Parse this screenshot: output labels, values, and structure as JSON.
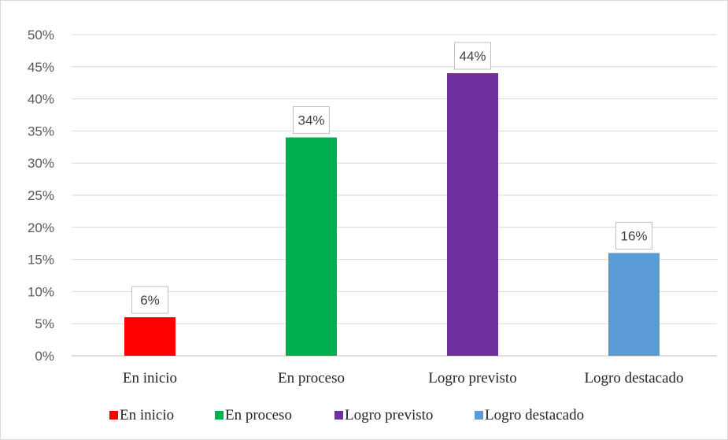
{
  "chart_data": {
    "type": "bar",
    "categories": [
      "En inicio",
      "En proceso",
      "Logro previsto",
      "Logro destacado"
    ],
    "values": [
      6,
      34,
      44,
      16
    ],
    "value_labels": [
      "6%",
      "34%",
      "44%",
      "16%"
    ],
    "colors": [
      "#ff0000",
      "#00b050",
      "#7030a0",
      "#5b9bd5"
    ],
    "ylim": [
      0,
      50
    ],
    "yticks": [
      0,
      5,
      10,
      15,
      20,
      25,
      30,
      35,
      40,
      45,
      50
    ],
    "ytick_labels": [
      "0%",
      "5%",
      "10%",
      "15%",
      "20%",
      "25%",
      "30%",
      "35%",
      "40%",
      "45%",
      "50%"
    ],
    "grid": true,
    "legend_position": "bottom",
    "legend": [
      "En inicio",
      "En proceso",
      "Logro previsto",
      "Logro destacado"
    ],
    "title": "",
    "xlabel": "",
    "ylabel": ""
  }
}
